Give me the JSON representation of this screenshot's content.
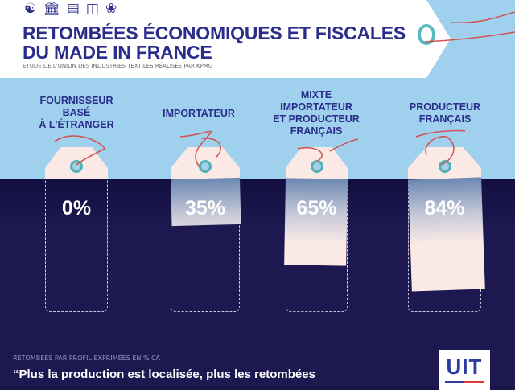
{
  "header": {
    "icons": [
      "people-hands-icon",
      "building-icon",
      "teacher-board-icon",
      "train-icon",
      "plant-hand-icon"
    ],
    "title_line1": "RETOMBÉES ÉCONOMIQUES ET FISCALES",
    "title_line2": "DU MADE IN FRANCE",
    "subtitle": "ETUDE DE L'UNION DES INDUSTRIES TEXTILES RÉALISÉE PAR KPMG"
  },
  "chart_data": {
    "type": "bar",
    "categories": [
      "FOURNISSEUR BASÉ À L'ÉTRANGER",
      "IMPORTATEUR",
      "MIXTE IMPORTATEUR ET PRODUCTEUR FRANÇAIS",
      "PRODUCTEUR FRANÇAIS"
    ],
    "values": [
      0,
      35,
      65,
      84
    ],
    "value_labels": [
      "0%",
      "35%",
      "65%",
      "84%"
    ],
    "ylim": [
      0,
      100
    ],
    "caption": "RETOMBÉES PAR PROFIL EXPRIMÉES EN % CA"
  },
  "labels": [
    [
      "FOURNISSEUR",
      "BASÉ",
      "À L'ÉTRANGER"
    ],
    [
      "IMPORTATEUR"
    ],
    [
      "MIXTE",
      "IMPORTATEUR",
      "ET PRODUCTEUR",
      "FRANÇAIS"
    ],
    [
      "PRODUCTEUR",
      "FRANÇAIS"
    ]
  ],
  "footer": {
    "quote": "“Plus la production est localisée, plus les retombées",
    "logo_text": "UIT"
  },
  "colors": {
    "sky": "#9fd0ee",
    "navy": "#1b1649",
    "title": "#2b2d8a",
    "tag": "#fbe9e6",
    "hole": "#4fb3b5",
    "string": "#d0514f"
  }
}
